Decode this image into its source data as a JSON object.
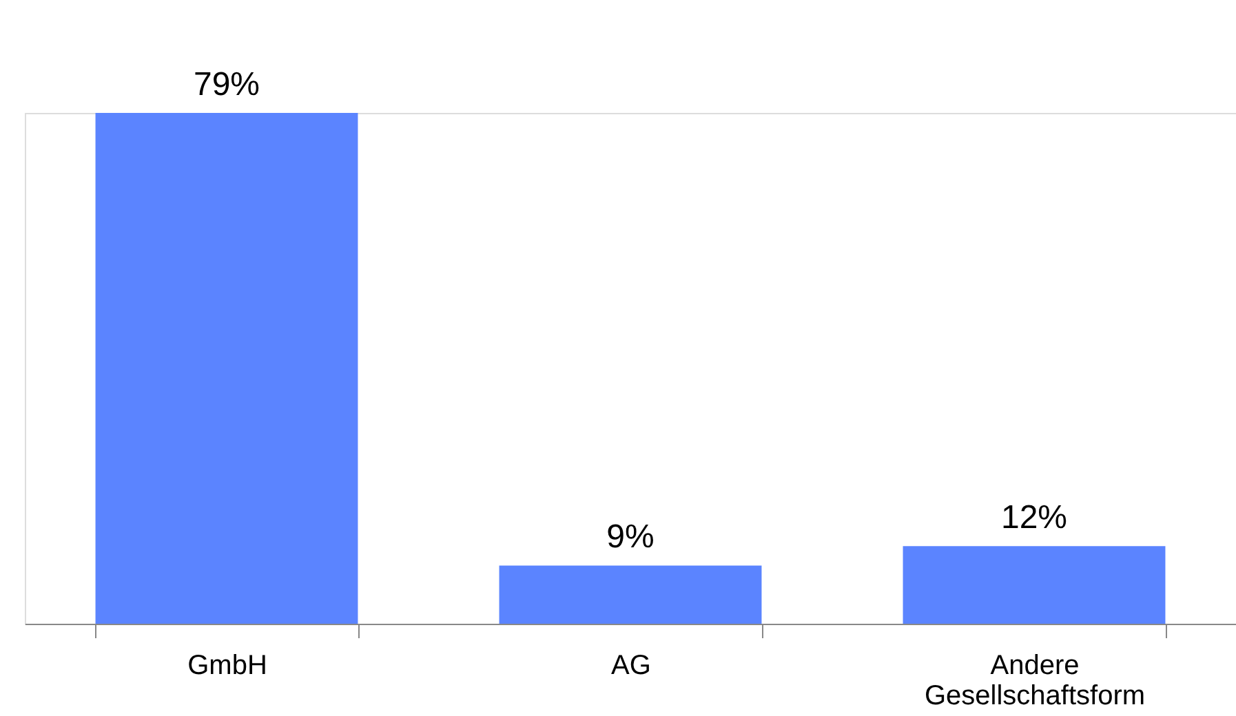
{
  "chart_data": {
    "type": "bar",
    "categories": [
      "GmbH",
      "AG",
      "Andere Gesellschaftsform"
    ],
    "values": [
      79,
      9,
      12
    ],
    "color": "#5b84ff",
    "value_labels": [
      "79%",
      "9%",
      "12%"
    ],
    "grid": false
  }
}
